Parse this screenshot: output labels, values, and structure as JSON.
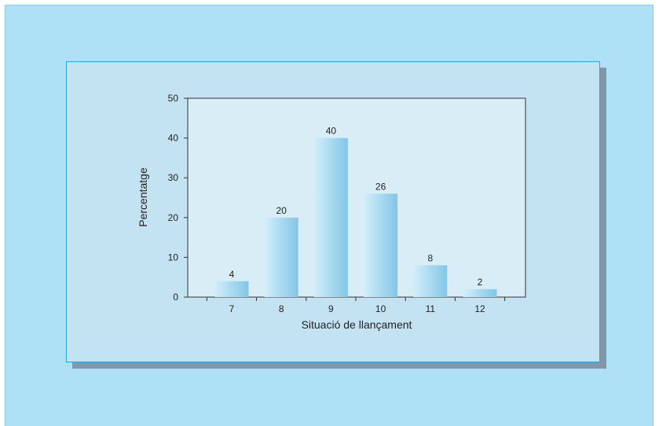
{
  "chart_data": {
    "type": "bar",
    "title": "",
    "xlabel": "Situació de llançament",
    "ylabel": "Percentatge",
    "categories": [
      "7",
      "8",
      "9",
      "10",
      "11",
      "12"
    ],
    "values": [
      4,
      20,
      40,
      26,
      8,
      2
    ],
    "data_labels": [
      "4",
      "20",
      "40",
      "26",
      "8",
      "2"
    ],
    "ylim": [
      0,
      50
    ],
    "yticks": [
      "0",
      "10",
      "20",
      "30",
      "40",
      "50"
    ],
    "grid": false,
    "legend": "none"
  },
  "colors": {
    "background": "#aee0f6",
    "panel": "#c4e3f2",
    "plot_area": "#d9edf6",
    "bar_light": "#d2eefb",
    "bar_dark": "#82c6e6"
  }
}
